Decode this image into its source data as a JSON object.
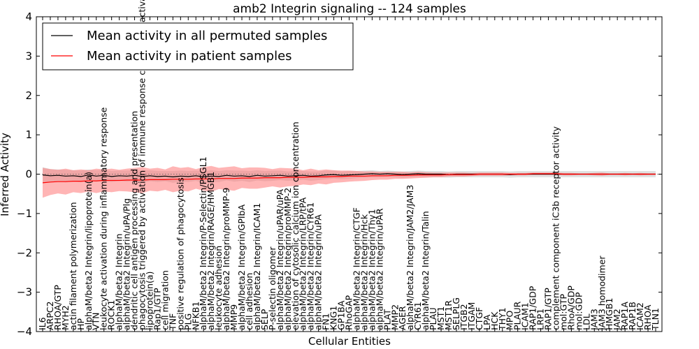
{
  "chart_data": {
    "type": "line",
    "title": "amb2 Integrin signaling -- 124 samples",
    "xlabel": "Cellular Entities",
    "ylabel": "Inferred Activity",
    "ylim": [
      -4,
      4
    ],
    "yticks": [
      -4,
      -3,
      -2,
      -1,
      0,
      1,
      2,
      3,
      4
    ],
    "ytick_labels": [
      "−4",
      "−3",
      "−2",
      "−1",
      "0",
      "1",
      "2",
      "3",
      "4"
    ],
    "legend_position": "top-left",
    "categories": [
      "IL6",
      "ARPC2",
      "RHOA/GTP",
      "MYH2",
      "actin filament polymerization",
      "HP",
      "alphaM/beta2 Integrin/lipoprotein(a)",
      "VTN",
      "leukocyte activation during inflammatory response",
      "ROCK1",
      "alphaM/beta2 Integrin",
      "alphaM/beta2 Integrin/uPA/Plg",
      "dendritic cell antigen processing and presentation",
      "phagocytosis triggered by activation of immune response cell surface activating receptor",
      "lipoprotein(a)",
      "Rap1/GTP",
      "cell migration",
      "TNF",
      "positive regulation of phagocytosis",
      "PLG",
      "NFKB1",
      "alphaM/beta2 Integrin/P-Selectin/PSGL1",
      "alphaM/beta2 Integrin/RAGE/HMGB1",
      "leukocyte adhesion",
      "alphaM/beta2 Integrin/proMMP-9",
      "MMP9",
      "alphaM/beta2 Integrin/GPIbA",
      "cell adhesion",
      "alphaM/beta2 Integrin/ICAM1",
      "SELP",
      "P-selectin oligomer",
      "alphaM/beta2 Integrin/uPAR/uPA",
      "alphaM/beta2 Integrin/proMMP-2",
      "elevation of cytosolic calcium ion concentration",
      "alphaM/beta2 Integrin/LRP/tPA",
      "alphaM/beta2 Integrin/CYR61",
      "alphaM/beta2 Integrin/uPA",
      "FN1",
      "KNG1",
      "GP1BA",
      "RhoGAP",
      "alphaM/beta2 Integrin/CTGF",
      "alphaM/beta2 Integrin/Hck",
      "alphaM/beta2 Integrin/Thy1",
      "alphaM/beta2 Integrin/uPAR",
      "PLAT",
      "MMP2",
      "AGER",
      "alphaM/beta2 Integrin/JAM2/JAM3",
      "CYR61",
      "alphaM/beta2 Integrin/Talin",
      "PLAU",
      "MST1",
      "MST1R",
      "SELPLG",
      "ITGB2",
      "ITGAM",
      "CTGF",
      "LPA",
      "HCK",
      "THY1",
      "MPO",
      "PLAUR",
      "ICAM1",
      "RAP1/GDP",
      "LRP1",
      "RAP1/GTP",
      "complement component iC3b receptor activity",
      "mol:GTP",
      "RhoA/GDP",
      "mol:GDP",
      "LDL",
      "JAM3",
      "JAM3 homodimer",
      "HMGB1",
      "JAM2",
      "RAP1A",
      "RAP1B",
      "ICAM2",
      "RHOA",
      "TLN1"
    ],
    "series": [
      {
        "name": "Mean activity in all permuted samples",
        "color": "#000000",
        "values": [
          -0.02,
          -0.04,
          -0.03,
          -0.05,
          -0.04,
          -0.06,
          -0.02,
          -0.05,
          -0.03,
          -0.06,
          -0.04,
          -0.05,
          -0.03,
          -0.06,
          -0.04,
          -0.06,
          -0.05,
          -0.07,
          -0.05,
          -0.06,
          -0.04,
          -0.07,
          -0.05,
          -0.06,
          -0.03,
          -0.05,
          -0.04,
          -0.06,
          -0.03,
          -0.05,
          -0.04,
          -0.03,
          -0.05,
          -0.04,
          -0.03,
          -0.05,
          -0.04,
          -0.02,
          -0.01,
          -0.03,
          -0.02,
          -0.01,
          0.0,
          0.01,
          0.0,
          0.01,
          0.0,
          -0.01,
          0.0,
          0.01,
          0.0,
          0.0,
          0.0,
          -0.01,
          0.0,
          0.0,
          0.0,
          0.0,
          0.0,
          0.0,
          0.0,
          -0.01,
          0.0,
          0.0,
          0.0,
          0.0,
          0.0,
          0.0,
          0.0,
          0.0,
          0.0,
          0.0,
          0.0,
          0.0,
          0.0,
          0.0,
          0.0,
          0.0,
          0.0,
          0.0,
          0.0
        ],
        "band_half_width": [
          0.2,
          0.17,
          0.15,
          0.16,
          0.14,
          0.15,
          0.14,
          0.15,
          0.14,
          0.14,
          0.13,
          0.14,
          0.14,
          0.15,
          0.14,
          0.14,
          0.13,
          0.15,
          0.14,
          0.14,
          0.13,
          0.15,
          0.15,
          0.14,
          0.13,
          0.14,
          0.13,
          0.14,
          0.13,
          0.13,
          0.13,
          0.12,
          0.12,
          0.12,
          0.11,
          0.12,
          0.11,
          0.11,
          0.1,
          0.1,
          0.1,
          0.09,
          0.09,
          0.09,
          0.08,
          0.08,
          0.08,
          0.08,
          0.08,
          0.08,
          0.08,
          0.08,
          0.08,
          0.08,
          0.08,
          0.08,
          0.08,
          0.08,
          0.08,
          0.08,
          0.08,
          0.08,
          0.08,
          0.08,
          0.08,
          0.08,
          0.08,
          0.08,
          0.08,
          0.08,
          0.08,
          0.08,
          0.08,
          0.08,
          0.08,
          0.08,
          0.08,
          0.08,
          0.08,
          0.08,
          0.08
        ]
      },
      {
        "name": "Mean activity in patient samples",
        "color": "#ff0000",
        "values": [
          -0.22,
          -0.2,
          -0.19,
          -0.19,
          -0.18,
          -0.18,
          -0.17,
          -0.17,
          -0.16,
          -0.16,
          -0.16,
          -0.15,
          -0.15,
          -0.15,
          -0.14,
          -0.14,
          -0.14,
          -0.13,
          -0.13,
          -0.13,
          -0.12,
          -0.12,
          -0.12,
          -0.11,
          -0.11,
          -0.11,
          -0.1,
          -0.1,
          -0.1,
          -0.09,
          -0.09,
          -0.09,
          -0.08,
          -0.08,
          -0.08,
          -0.07,
          -0.07,
          -0.07,
          -0.06,
          -0.06,
          -0.05,
          -0.05,
          -0.05,
          -0.04,
          -0.04,
          -0.04,
          -0.03,
          -0.03,
          -0.03,
          -0.02,
          -0.02,
          -0.02,
          -0.02,
          -0.01,
          -0.01,
          -0.01,
          -0.01,
          0.0,
          0.0,
          0.0,
          0.0,
          0.0,
          0.0,
          0.0,
          0.01,
          0.01,
          0.01,
          0.01,
          0.0,
          0.0,
          0.0,
          0.0,
          0.0,
          0.0,
          0.0,
          0.0,
          0.0,
          0.0,
          0.0,
          0.0,
          0.0
        ],
        "band_half_width": [
          0.38,
          0.33,
          0.3,
          0.33,
          0.28,
          0.3,
          0.27,
          0.31,
          0.28,
          0.3,
          0.27,
          0.29,
          0.31,
          0.33,
          0.28,
          0.3,
          0.26,
          0.33,
          0.29,
          0.31,
          0.25,
          0.3,
          0.33,
          0.27,
          0.29,
          0.31,
          0.25,
          0.27,
          0.27,
          0.25,
          0.22,
          0.25,
          0.23,
          0.22,
          0.18,
          0.21,
          0.17,
          0.19,
          0.16,
          0.15,
          0.14,
          0.13,
          0.12,
          0.11,
          0.1,
          0.1,
          0.09,
          0.09,
          0.08,
          0.08,
          0.07,
          0.06,
          0.06,
          0.05,
          0.05,
          0.05,
          0.04,
          0.04,
          0.04,
          0.04,
          0.04,
          0.03,
          0.03,
          0.03,
          0.03,
          0.03,
          0.03,
          0.03,
          0.03,
          0.03,
          0.02,
          0.02,
          0.03,
          0.04,
          0.02,
          0.02,
          0.03,
          0.02,
          0.03,
          0.02,
          0.02
        ]
      }
    ]
  }
}
